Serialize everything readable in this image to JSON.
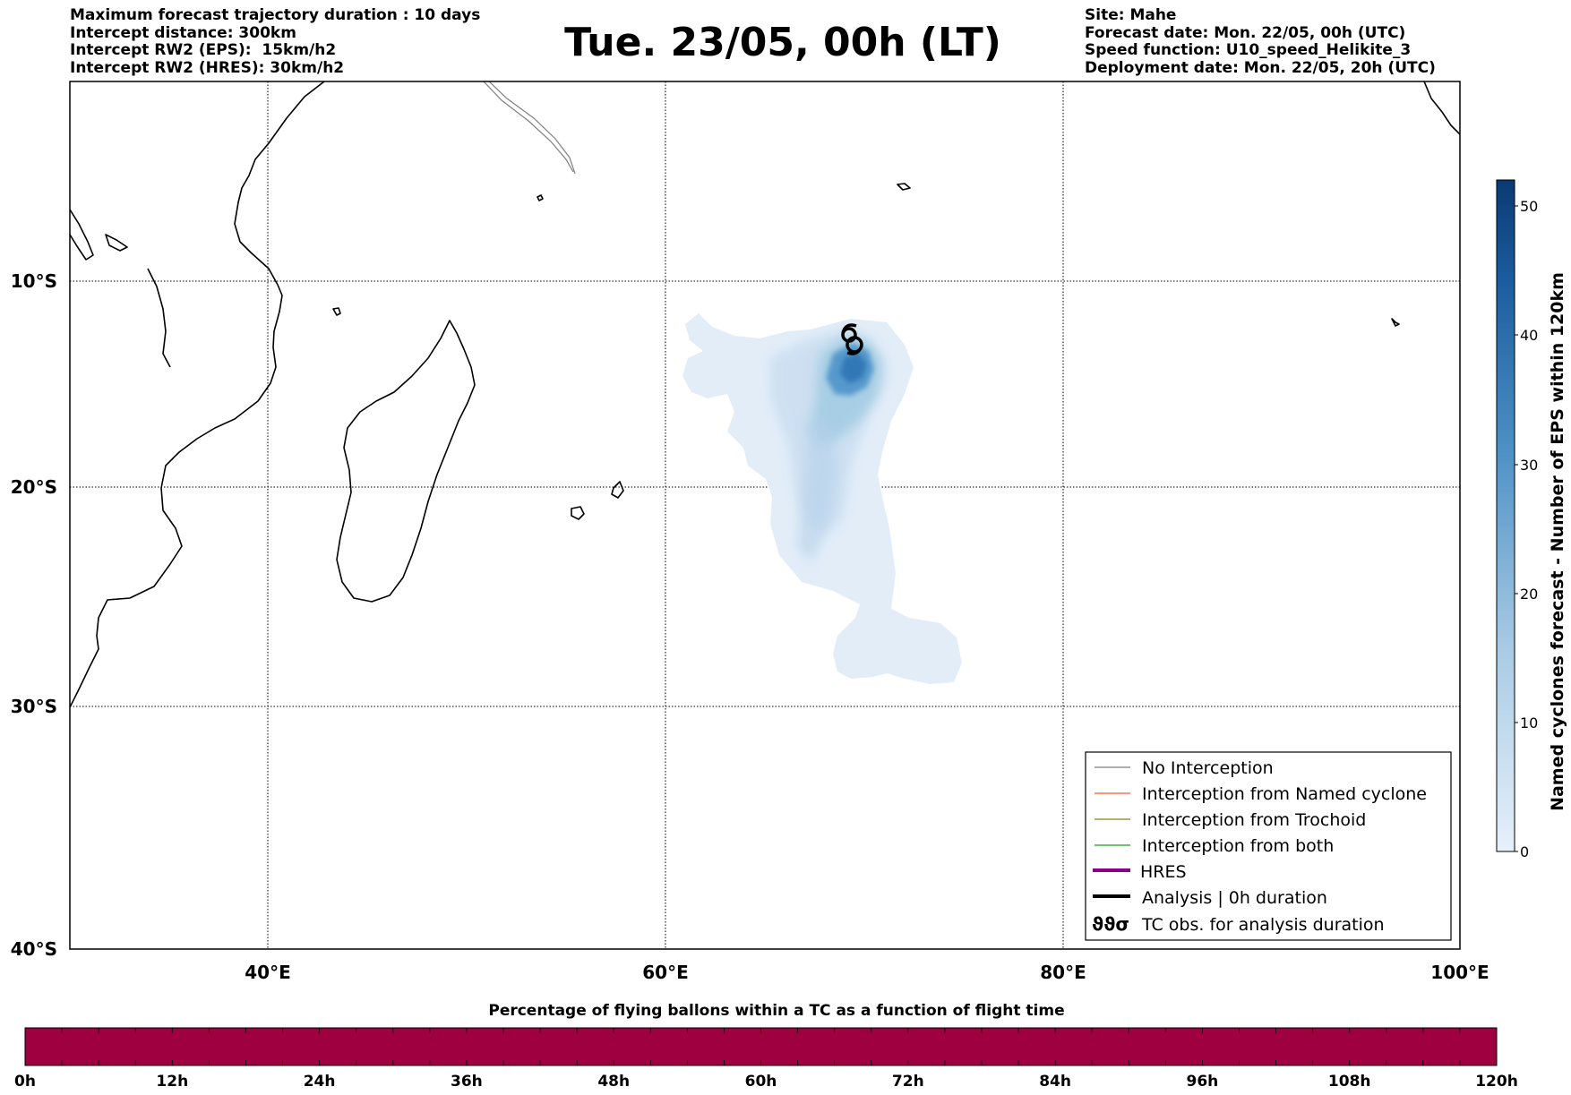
{
  "header": {
    "left": [
      "Maximum forecast trajectory duration : 10 days",
      "Intercept distance: 300km",
      "Intercept RW2 (EPS):  15km/h2",
      "Intercept RW2 (HRES): 30km/h2"
    ],
    "title": "Tue. 23/05, 00h (LT)",
    "right": [
      "Site: Mahe",
      "Forecast date: Mon. 22/05, 00h (UTC)",
      "Speed function: U10_speed_Helikite_3",
      "Deployment date: Mon. 22/05, 20h (UTC)"
    ]
  },
  "map": {
    "lat_labels": [
      "10°S",
      "20°S",
      "30°S",
      "40°S"
    ],
    "lon_labels": [
      "40°E",
      "60°E",
      "80°E",
      "100°E"
    ],
    "extent": {
      "lon_min": 30,
      "lon_max": 100,
      "lat_min": -40,
      "lat_max": -0.5
    }
  },
  "legend": {
    "items": [
      {
        "label": "No Interception",
        "color": "#7f7f7f",
        "style": "thin"
      },
      {
        "label": "Interception from Named cyclone",
        "color": "#ff5a1f",
        "style": "thin"
      },
      {
        "label": "Interception from Trochoid",
        "color": "#8a7d12",
        "style": "thin"
      },
      {
        "label": "Interception from both",
        "color": "#1f9a1f",
        "style": "thin"
      },
      {
        "label": "HRES",
        "color": "#8b008b",
        "style": "thick"
      },
      {
        "label": "Analysis | 0h duration",
        "color": "#000000",
        "style": "thick"
      },
      {
        "label": "TC obs. for analysis duration",
        "color": "#000000",
        "style": "symbol",
        "symbol": "ϑϑσ"
      }
    ]
  },
  "colorbar_right": {
    "label": "Named cyclones forecast - Number of EPS within 120km",
    "ticks": [
      "0",
      "10",
      "20",
      "30",
      "40",
      "50"
    ],
    "min": 0,
    "max": 52,
    "color_low": "#e6f0fa",
    "color_high": "#0b3a73"
  },
  "timebar": {
    "title": "Percentage of flying ballons within a TC as a function of flight time",
    "ticks": [
      "0h",
      "12h",
      "24h",
      "36h",
      "48h",
      "60h",
      "72h",
      "84h",
      "96h",
      "108h",
      "120h"
    ],
    "fill_color": "#9e0040"
  }
}
